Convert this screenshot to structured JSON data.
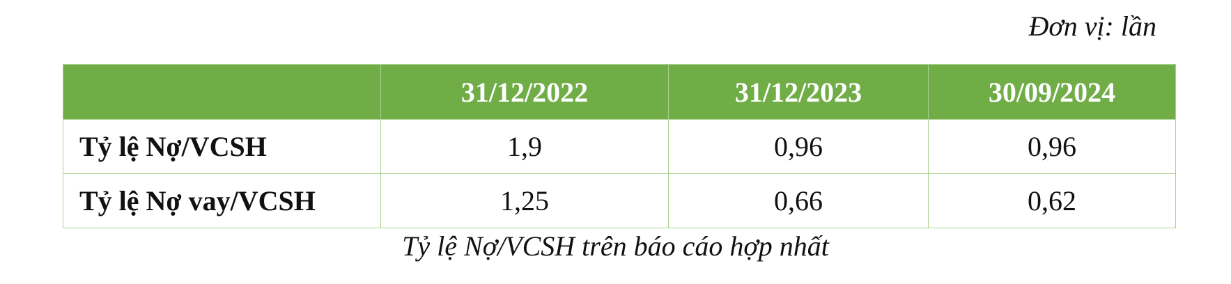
{
  "unit_note": "Đơn vị: lần",
  "table": {
    "headers": [
      "",
      "31/12/2022",
      "31/12/2023",
      "30/09/2024"
    ],
    "rows": [
      {
        "label": "Tỷ lệ Nợ/VCSH",
        "values": [
          "1,9",
          "0,96",
          "0,96"
        ]
      },
      {
        "label": "Tỷ lệ Nợ vay/VCSH",
        "values": [
          "1,25",
          "0,66",
          "0,62"
        ]
      }
    ],
    "colors": {
      "header_bg": "#70ad47",
      "header_text": "#ffffff",
      "border": "#a9d18e"
    }
  },
  "caption": "Tỷ lệ Nợ/VCSH trên báo cáo hợp nhất"
}
